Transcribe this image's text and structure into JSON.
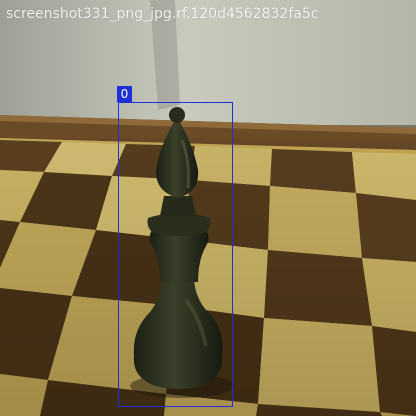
{
  "image": {
    "caption": "screenshot331_png_jpg.rf.120d4562832fa5c",
    "subject": "chess bishop",
    "colors": {
      "wall": "#bcbfb1",
      "board_edge": "#6b4a26",
      "light_square": "#d6bf6a",
      "dark_square": "#5e4220",
      "piece": "#2e3322",
      "bbox": "#1f2fd6"
    }
  },
  "annotations": [
    {
      "label": "0"
    }
  ]
}
